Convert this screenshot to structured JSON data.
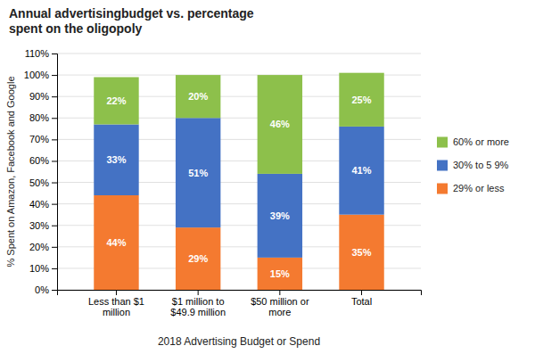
{
  "chart_data": {
    "type": "bar",
    "title": "Annual advertisingbudget vs. percentage\nspent on the oligopoly",
    "xlabel": "2018 Advertising Budget or Spend",
    "ylabel": "% Spent on Amazon, Facebook and Google",
    "categories": [
      "Less than $1\nmillion",
      "$1 million to\n$49.9 million",
      "$50 million or\nmore",
      "Total"
    ],
    "series": [
      {
        "name": "29% or less",
        "color": "#f47a30",
        "values": [
          44,
          29,
          15,
          35
        ],
        "value_labels": [
          "44%",
          "29%",
          "15%",
          "35%"
        ]
      },
      {
        "name": "30% to 5 9%",
        "color": "#4472c4",
        "values": [
          33,
          51,
          39,
          41
        ],
        "value_labels": [
          "33%",
          "51%",
          "39%",
          "41%"
        ]
      },
      {
        "name": "60% or more",
        "color": "#8dc04b",
        "values": [
          22,
          20,
          46,
          25
        ],
        "value_labels": [
          "22%",
          "20%",
          "46%",
          "25%"
        ]
      }
    ],
    "stacked": true,
    "data_labels": true,
    "grid": true,
    "ylim": [
      0,
      110
    ],
    "yticks": [
      {
        "value": 0,
        "label": "0%"
      },
      {
        "value": 10,
        "label": "10%"
      },
      {
        "value": 20,
        "label": "20%"
      },
      {
        "value": 30,
        "label": "30%"
      },
      {
        "value": 40,
        "label": "40%"
      },
      {
        "value": 50,
        "label": "50%"
      },
      {
        "value": 60,
        "label": "60%"
      },
      {
        "value": 70,
        "label": "70%"
      },
      {
        "value": 80,
        "label": "80%"
      },
      {
        "value": 90,
        "label": "90%"
      },
      {
        "value": 100,
        "label": "100%"
      },
      {
        "value": 110,
        "label": "110%"
      }
    ]
  }
}
